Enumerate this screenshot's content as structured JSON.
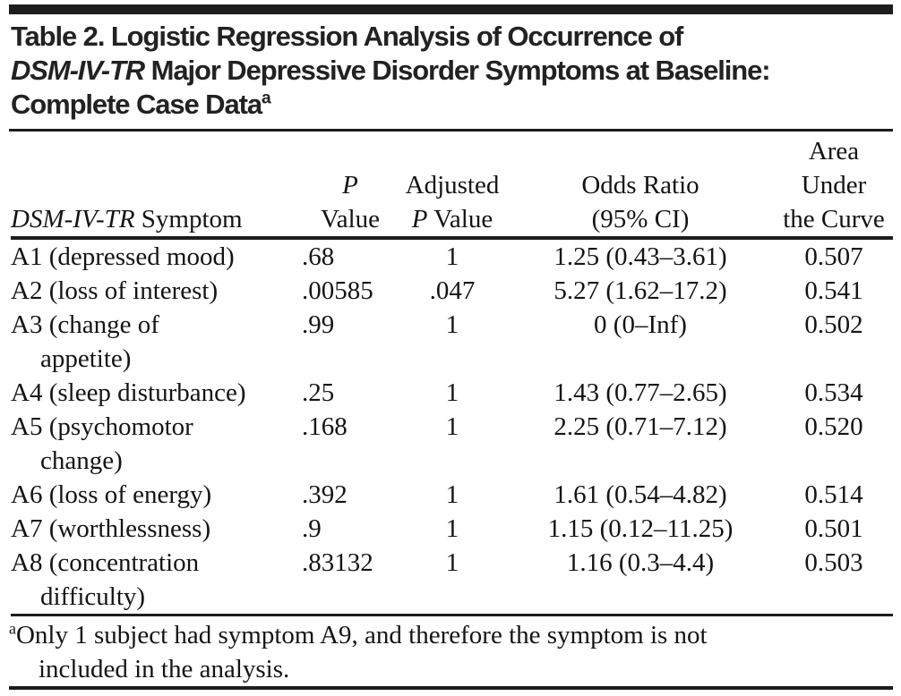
{
  "page": {
    "background_color": "#ffffff",
    "text_color": "#141414",
    "rule_color": "#1d1d1d"
  },
  "table": {
    "title": {
      "line1": "Table 2. Logistic Regression Analysis of Occurrence of",
      "line2_italic": "DSM-IV-TR",
      "line2_rest": " Major Depressive Disorder Symptoms at Baseline:",
      "line3": "Complete Case Data",
      "footnote_marker": "a"
    },
    "header": {
      "symptom_italic": "DSM-IV-TR",
      "symptom_rest": " Symptom",
      "p_line1": "P",
      "p_line2": "Value",
      "adj_line1": "Adjusted",
      "adj_line2_italic": "P",
      "adj_line2_rest": " Value",
      "or_line1": "Odds Ratio",
      "or_line2": "(95% CI)",
      "auc_line1": "Area",
      "auc_line2": "Under",
      "auc_line3": "the Curve"
    },
    "rows": [
      {
        "symptom": "A1 (depressed mood)",
        "p_value": ".68",
        "adjusted_p_value": "1",
        "odds_ratio": "1.25 (0.43–3.61)",
        "auc": "0.507"
      },
      {
        "symptom": "A2 (loss of interest)",
        "p_value": ".00585",
        "adjusted_p_value": ".047",
        "odds_ratio": "5.27 (1.62–17.2)",
        "auc": "0.541"
      },
      {
        "symptom": "A3 (change of\nappetite)",
        "p_value": ".99",
        "adjusted_p_value": "1",
        "odds_ratio": "0 (0–Inf)",
        "auc": "0.502"
      },
      {
        "symptom": "A4 (sleep disturbance)",
        "p_value": ".25",
        "adjusted_p_value": "1",
        "odds_ratio": "1.43 (0.77–2.65)",
        "auc": "0.534"
      },
      {
        "symptom": "A5 (psychomotor\nchange)",
        "p_value": ".168",
        "adjusted_p_value": "1",
        "odds_ratio": "2.25 (0.71–7.12)",
        "auc": "0.520"
      },
      {
        "symptom": "A6 (loss of energy)",
        "p_value": ".392",
        "adjusted_p_value": "1",
        "odds_ratio": "1.61 (0.54–4.82)",
        "auc": "0.514"
      },
      {
        "symptom": "A7 (worthlessness)",
        "p_value": ".9",
        "adjusted_p_value": "1",
        "odds_ratio": "1.15 (0.12–11.25)",
        "auc": "0.501"
      },
      {
        "symptom": "A8 (concentration\ndifficulty)",
        "p_value": ".83132",
        "adjusted_p_value": "1",
        "odds_ratio": "1.16 (0.3–4.4)",
        "auc": "0.503"
      }
    ],
    "footnote": {
      "marker": "a",
      "text": "Only 1 subject had symptom A9, and therefore the symptom is not\nincluded in the analysis."
    }
  }
}
